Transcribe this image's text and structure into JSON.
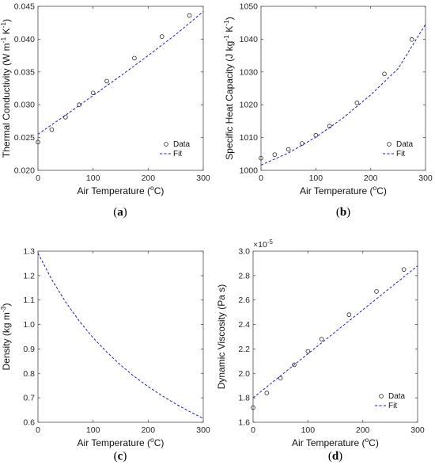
{
  "chart_data": [
    {
      "type": "scatter",
      "panel_label": "(a)",
      "xlabel": "Air Temperature (°C)",
      "ylabel": "Thermal Conductivity (W m⁻¹ K⁻¹)",
      "xlim": [
        0,
        300
      ],
      "ylim": [
        0.02,
        0.045
      ],
      "xticks": [
        0,
        100,
        200,
        300
      ],
      "xtick_labels": [
        "0",
        "100",
        "200",
        "300"
      ],
      "yticks": [
        0.02,
        0.025,
        0.03,
        0.035,
        0.04,
        0.045
      ],
      "ytick_labels": [
        "0.020",
        "0.025",
        "0.030",
        "0.035",
        "0.040",
        "0.045"
      ],
      "legend": {
        "placement": "bottom-right",
        "entries": [
          "Data",
          "Fit"
        ]
      },
      "series": [
        {
          "name": "Data",
          "kind": "markers",
          "x": [
            0,
            25,
            50,
            75,
            100,
            125,
            175,
            225,
            275
          ],
          "y": [
            0.0243,
            0.0262,
            0.0281,
            0.03,
            0.0318,
            0.0336,
            0.0371,
            0.0404,
            0.0436
          ]
        },
        {
          "name": "Fit",
          "kind": "dashed-line",
          "x": [
            0,
            50,
            100,
            150,
            200,
            250,
            300
          ],
          "y": [
            0.0255,
            0.0284,
            0.0314,
            0.0344,
            0.0375,
            0.0407,
            0.0442
          ]
        }
      ],
      "grid": false
    },
    {
      "type": "scatter",
      "panel_label": "(b)",
      "xlabel": "Air Temperature (°C)",
      "ylabel": "Specific Heat Capacity (J kg⁻¹ K⁻¹)",
      "xlim": [
        0,
        300
      ],
      "ylim": [
        1000,
        1050
      ],
      "xticks": [
        0,
        100,
        200,
        300
      ],
      "xtick_labels": [
        "0",
        "100",
        "200",
        "300"
      ],
      "yticks": [
        1000,
        1010,
        1020,
        1030,
        1040,
        1050
      ],
      "ytick_labels": [
        "1000",
        "1010",
        "1020",
        "1030",
        "1040",
        "1050"
      ],
      "legend": {
        "placement": "bottom-right",
        "entries": [
          "Data",
          "Fit"
        ]
      },
      "series": [
        {
          "name": "Data",
          "kind": "markers",
          "x": [
            0,
            25,
            50,
            75,
            100,
            125,
            175,
            225,
            275
          ],
          "y": [
            1003.7,
            1004.8,
            1006.4,
            1008.2,
            1010.7,
            1013.5,
            1020.6,
            1029.4,
            1039.9
          ]
        },
        {
          "name": "Fit",
          "kind": "dashed-line",
          "x": [
            0,
            50,
            100,
            150,
            200,
            250,
            300
          ],
          "y": [
            1001.6,
            1005.3,
            1010.1,
            1016.0,
            1023.0,
            1031.0,
            1044.5
          ]
        }
      ],
      "grid": false
    },
    {
      "type": "line",
      "panel_label": "(c)",
      "xlabel": "Air Temperature (°C)",
      "ylabel": "Density (kg m⁻³)",
      "xlim": [
        0,
        300
      ],
      "ylim": [
        0.6,
        1.3
      ],
      "xticks": [
        0,
        100,
        200,
        300
      ],
      "xtick_labels": [
        "0",
        "100",
        "200",
        "300"
      ],
      "yticks": [
        0.6,
        0.7,
        0.8,
        0.9,
        1.0,
        1.1,
        1.2,
        1.3
      ],
      "ytick_labels": [
        "0.6",
        "0.7",
        "0.8",
        "0.9",
        "1.0",
        "1.1",
        "1.2",
        "1.3"
      ],
      "series": [
        {
          "kind": "dashed-line",
          "x": [
            0,
            25,
            50,
            75,
            100,
            125,
            150,
            175,
            200,
            225,
            250,
            275,
            300
          ],
          "y": [
            1.292,
            1.184,
            1.093,
            1.014,
            0.946,
            0.887,
            0.834,
            0.787,
            0.746,
            0.709,
            0.675,
            0.644,
            0.616
          ]
        }
      ],
      "grid": false
    },
    {
      "type": "scatter",
      "panel_label": "(d)",
      "xlabel": "Air Temperature (°C)",
      "ylabel": "Dynamic Viscosity (Pa s)",
      "scale_factor": "×10⁻⁵",
      "xlim": [
        0,
        300
      ],
      "ylim": [
        1.6,
        3.0
      ],
      "xticks": [
        0,
        100,
        200,
        300
      ],
      "xtick_labels": [
        "0",
        "100",
        "200",
        "300"
      ],
      "yticks": [
        1.6,
        1.8,
        2.0,
        2.2,
        2.4,
        2.6,
        2.8,
        3.0
      ],
      "ytick_labels": [
        "1.6",
        "1.8",
        "2.0",
        "2.2",
        "2.4",
        "2.6",
        "2.8",
        "3.0"
      ],
      "legend": {
        "placement": "bottom-right",
        "entries": [
          "Data",
          "Fit"
        ]
      },
      "series": [
        {
          "name": "Data",
          "kind": "markers",
          "x": [
            0,
            25,
            50,
            75,
            100,
            125,
            175,
            225,
            275
          ],
          "y": [
            1.72,
            1.84,
            1.96,
            2.07,
            2.18,
            2.28,
            2.48,
            2.67,
            2.85
          ]
        },
        {
          "name": "Fit",
          "kind": "dashed-line",
          "x": [
            0,
            300
          ],
          "y": [
            1.8,
            2.88
          ]
        }
      ],
      "grid": false
    }
  ]
}
